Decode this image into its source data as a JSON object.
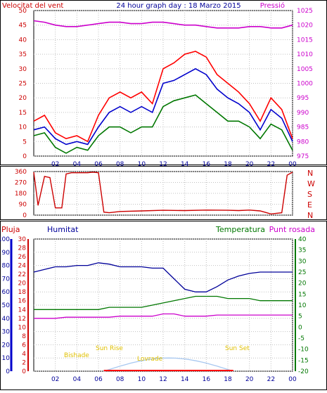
{
  "chart_data": [
    {
      "type": "line",
      "title": "24 hour graph day : 18 Marzo 2015",
      "left_label": "Velocitat del vent",
      "right_label": "Pressió",
      "x_ticks": [
        "02",
        "04",
        "06",
        "08",
        "10",
        "12",
        "14",
        "16",
        "18",
        "20",
        "22",
        "00"
      ],
      "y_ticks": [
        "0",
        "5",
        "10",
        "15",
        "20",
        "25",
        "30",
        "35",
        "40",
        "45",
        "50"
      ],
      "ylim": [
        0,
        50
      ],
      "y2_ticks": [
        "975",
        "980",
        "985",
        "990",
        "995",
        "1000",
        "1005",
        "1010",
        "1015",
        "1020",
        "1025"
      ],
      "y2lim": [
        975,
        1025
      ],
      "hours": [
        0,
        1,
        2,
        3,
        4,
        5,
        6,
        7,
        8,
        9,
        10,
        11,
        12,
        13,
        14,
        15,
        16,
        17,
        18,
        19,
        20,
        21,
        22,
        23,
        24
      ],
      "series": [
        {
          "color": "#ff0000",
          "values": [
            12,
            14,
            8,
            6,
            7,
            5,
            14,
            20,
            22,
            20,
            22,
            18,
            30,
            32,
            35,
            36,
            34,
            28,
            25,
            22,
            18,
            12,
            20,
            16,
            6
          ]
        },
        {
          "color": "#0000cc",
          "values": [
            9,
            10,
            6,
            4,
            5,
            4,
            10,
            15,
            17,
            15,
            17,
            15,
            25,
            26,
            28,
            30,
            28,
            23,
            20,
            18,
            15,
            9,
            16,
            13,
            5
          ]
        },
        {
          "color": "#007700",
          "values": [
            7,
            8,
            3,
            1,
            3,
            2,
            7,
            10,
            10,
            8,
            10,
            10,
            17,
            19,
            20,
            21,
            18,
            15,
            12,
            12,
            10,
            6,
            11,
            9,
            2
          ]
        },
        {
          "color": "#cc00cc",
          "axis": "right",
          "values": [
            1021.5,
            1021,
            1020,
            1019.5,
            1019.5,
            1020,
            1020.5,
            1021,
            1021,
            1020.5,
            1020.5,
            1021,
            1021,
            1020.5,
            1020,
            1020,
            1019.5,
            1019,
            1019,
            1019,
            1019.5,
            1019.5,
            1019,
            1019,
            1020
          ]
        }
      ]
    },
    {
      "type": "line",
      "y_ticks": [
        "0",
        "90",
        "180",
        "270",
        "360"
      ],
      "ylim": [
        0,
        360
      ],
      "right_labels": [
        "N",
        "W",
        "S",
        "E",
        "N"
      ],
      "hours": [
        0,
        0.4,
        1,
        1.5,
        2,
        2.6,
        3,
        3.5,
        4,
        4.5,
        5,
        5.5,
        6,
        6.5,
        7,
        8,
        10,
        12,
        14,
        16,
        18,
        19,
        20,
        21,
        22,
        23,
        23.5,
        24
      ],
      "series": [
        {
          "color": "#cc0000",
          "values": [
            355,
            80,
            320,
            310,
            60,
            60,
            340,
            350,
            350,
            350,
            350,
            355,
            350,
            25,
            20,
            30,
            35,
            40,
            38,
            42,
            40,
            38,
            42,
            35,
            10,
            20,
            330,
            355
          ]
        }
      ]
    },
    {
      "type": "line",
      "labels": {
        "rain": "Pluja",
        "humidity": "Humitat",
        "temperature": "Temperatura",
        "dewpoint": "Punt rosada"
      },
      "humidity_ticks": [
        "0",
        "10",
        "20",
        "30",
        "40",
        "50",
        "60",
        "70",
        "80",
        "90",
        "100"
      ],
      "rain_ticks": [
        "0",
        "2",
        "4",
        "6",
        "8",
        "10",
        "12",
        "14",
        "16",
        "18",
        "20",
        "22",
        "24",
        "26",
        "28",
        "30"
      ],
      "temp_ticks": [
        "-20",
        "-15",
        "-10",
        "-5",
        "0",
        "5",
        "10",
        "15",
        "20",
        "25",
        "30",
        "35",
        "40"
      ],
      "hours": [
        0,
        1,
        2,
        3,
        4,
        5,
        6,
        7,
        8,
        9,
        10,
        11,
        12,
        13,
        14,
        15,
        16,
        17,
        18,
        19,
        20,
        21,
        22,
        23,
        24
      ],
      "series": [
        {
          "name": "Humitat",
          "color": "#000099",
          "axis": "humidity",
          "values": [
            75,
            77,
            79,
            79,
            80,
            80,
            82,
            81,
            79,
            79,
            79,
            78,
            78,
            70,
            62,
            60,
            60,
            64,
            69,
            72,
            74,
            75,
            75,
            75,
            75
          ]
        },
        {
          "name": "Temperatura",
          "color": "#007700",
          "axis": "temperature",
          "values": [
            8,
            8,
            8,
            8,
            8,
            8,
            8,
            9,
            9,
            9,
            9,
            10,
            11,
            12,
            13,
            14,
            14,
            14,
            13,
            13,
            13,
            12,
            12,
            12,
            12
          ]
        },
        {
          "name": "Punt rosada",
          "color": "#cc00cc",
          "axis": "temperature",
          "values": [
            4,
            4,
            4,
            4.5,
            4.5,
            4.5,
            4.5,
            4.5,
            5,
            5,
            5,
            5,
            6,
            6,
            5,
            5,
            5,
            5.5,
            5.5,
            5.5,
            5.5,
            5.5,
            5.5,
            5.5,
            5.5
          ]
        }
      ],
      "sun": {
        "labels": {
          "dawn": "Bishade",
          "sunrise": "Sun Rise",
          "noon": "Lovrade",
          "sunset": "Sun Set"
        },
        "sunrise_hour": 6.5,
        "sunset_hour": 18.5,
        "peak_percent": 10
      }
    }
  ]
}
